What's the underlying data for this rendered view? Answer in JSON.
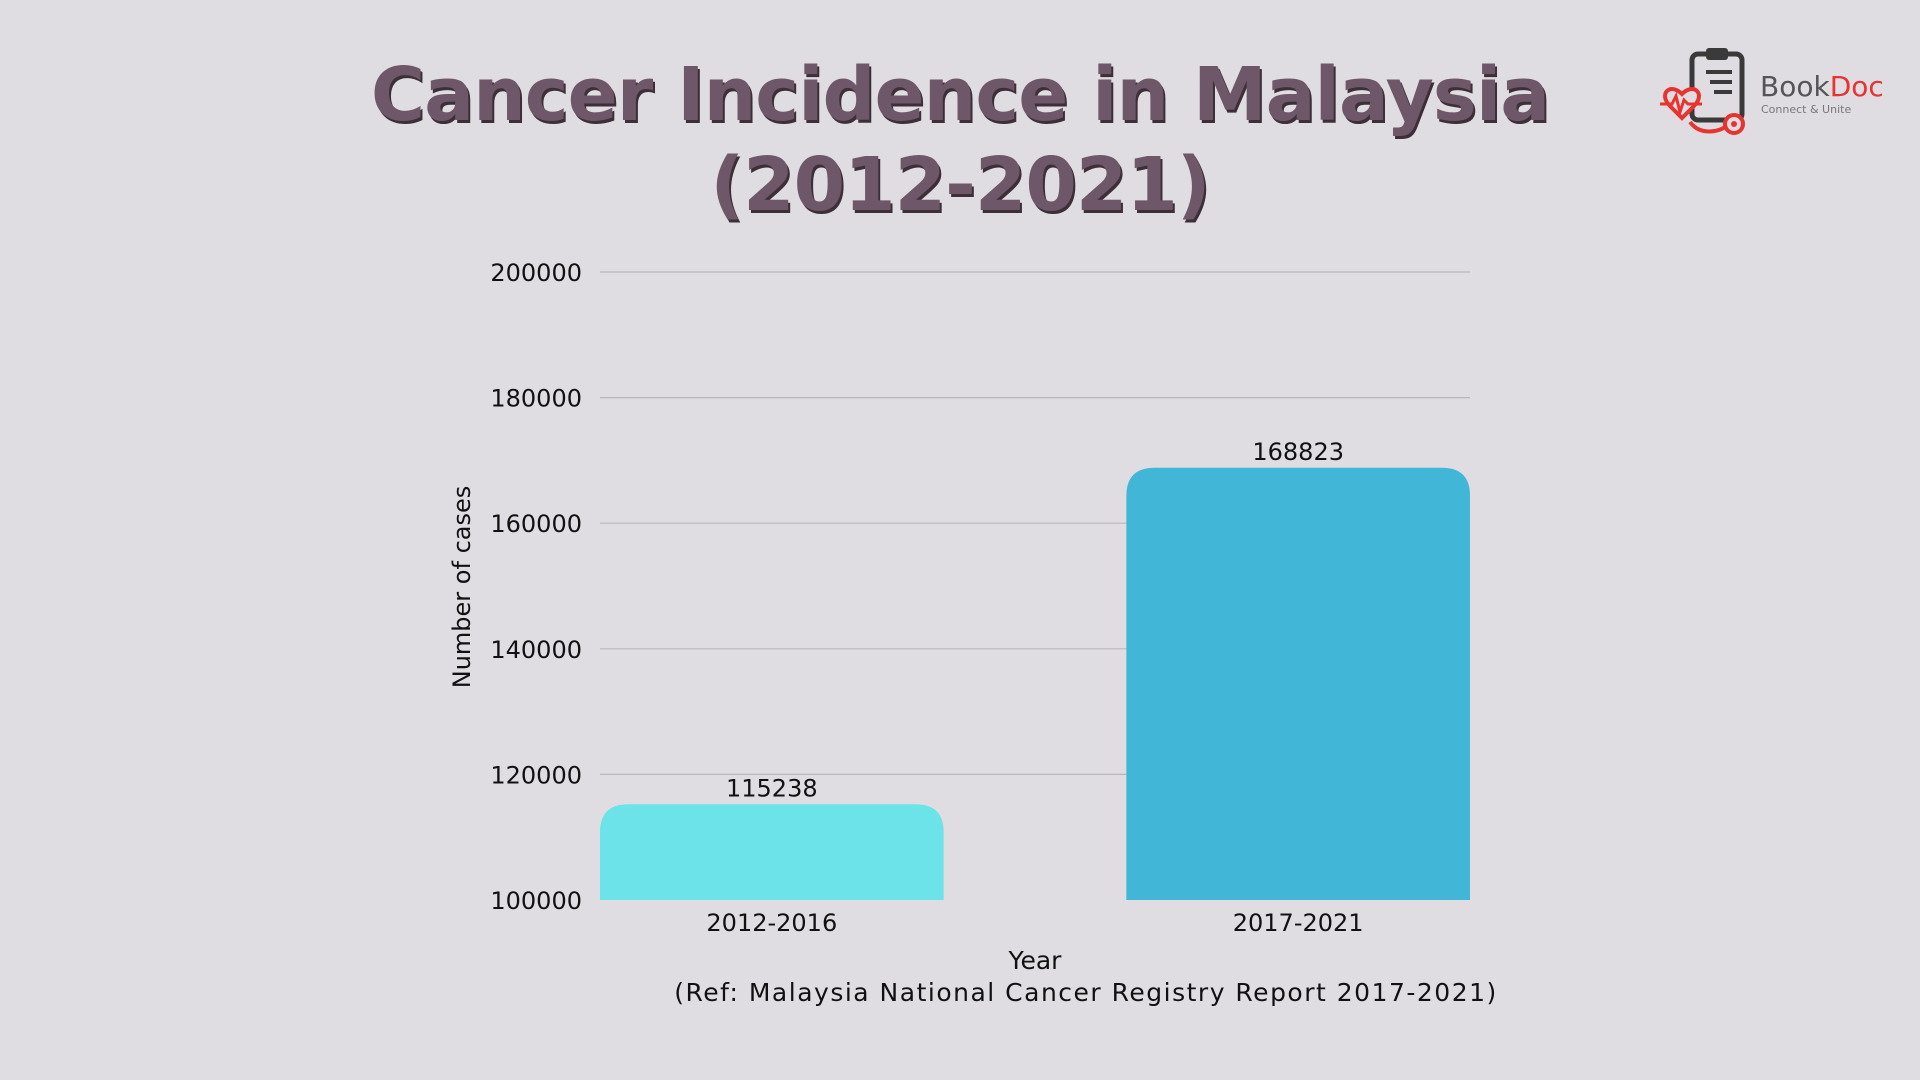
{
  "title_line1": "Cancer Incidence in Malaysia",
  "title_line2": "(2012-2021)",
  "logo": {
    "name_part1": "Book",
    "name_part2": "Doc",
    "tagline": "Connect & Unite",
    "icon": "clipboard-heart-stethoscope-icon",
    "colors": {
      "dark": "#3a3a3a",
      "red": "#e8332f"
    }
  },
  "reference": "(Ref: Malaysia National Cancer Registry Report 2017-2021)",
  "chart_data": {
    "type": "bar",
    "categories": [
      "2012-2016",
      "2017-2021"
    ],
    "values": [
      115238,
      168823
    ],
    "data_labels": [
      "115238",
      "168823"
    ],
    "xlabel": "Year",
    "ylabel": "Number of cases",
    "ylim": [
      100000,
      200000
    ],
    "yticks": [
      100000,
      120000,
      140000,
      160000,
      180000,
      200000
    ],
    "ytick_labels": [
      "100000",
      "120000",
      "140000",
      "160000",
      "180000",
      "200000"
    ],
    "grid": true,
    "colors": [
      "#6be3e8",
      "#42b6d7"
    ]
  }
}
